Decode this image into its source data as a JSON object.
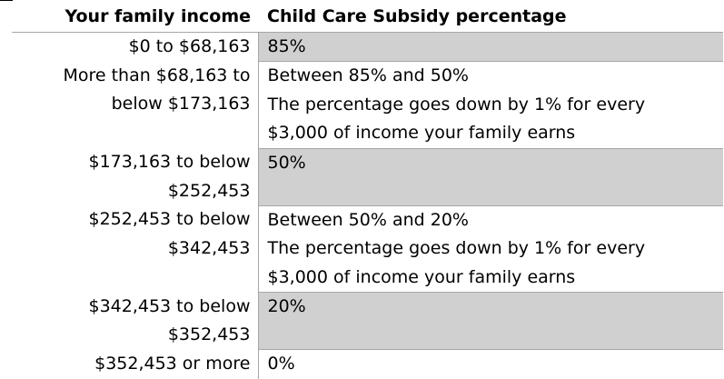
{
  "table": {
    "headers": {
      "income": "Your family income",
      "percentage": "Child Care Subsidy percentage"
    },
    "rows": [
      {
        "income": [
          "$0 to $68,163"
        ],
        "percentage": [
          "85%"
        ],
        "shaded": true
      },
      {
        "income": [
          "More than $68,163 to",
          "below $173,163"
        ],
        "percentage": [
          "Between 85% and 50%",
          "The percentage goes down by 1% for every",
          "$3,000 of income your family earns"
        ],
        "shaded": false
      },
      {
        "income": [
          "$173,163 to below",
          "$252,453"
        ],
        "percentage": [
          "50%"
        ],
        "shaded": true
      },
      {
        "income": [
          "$252,453 to below",
          "$342,453"
        ],
        "percentage": [
          "Between 50% and 20%",
          "The percentage goes down by 1% for every",
          "$3,000 of income your family earns"
        ],
        "shaded": false
      },
      {
        "income": [
          "$342,453 to below",
          "$352,453"
        ],
        "percentage": [
          "20%"
        ],
        "shaded": true
      },
      {
        "income": [
          "$352,453 or more"
        ],
        "percentage": [
          "0%"
        ],
        "shaded": false
      }
    ]
  },
  "colors": {
    "shade": "#d0d0d0",
    "border": "#a6a6a6"
  }
}
